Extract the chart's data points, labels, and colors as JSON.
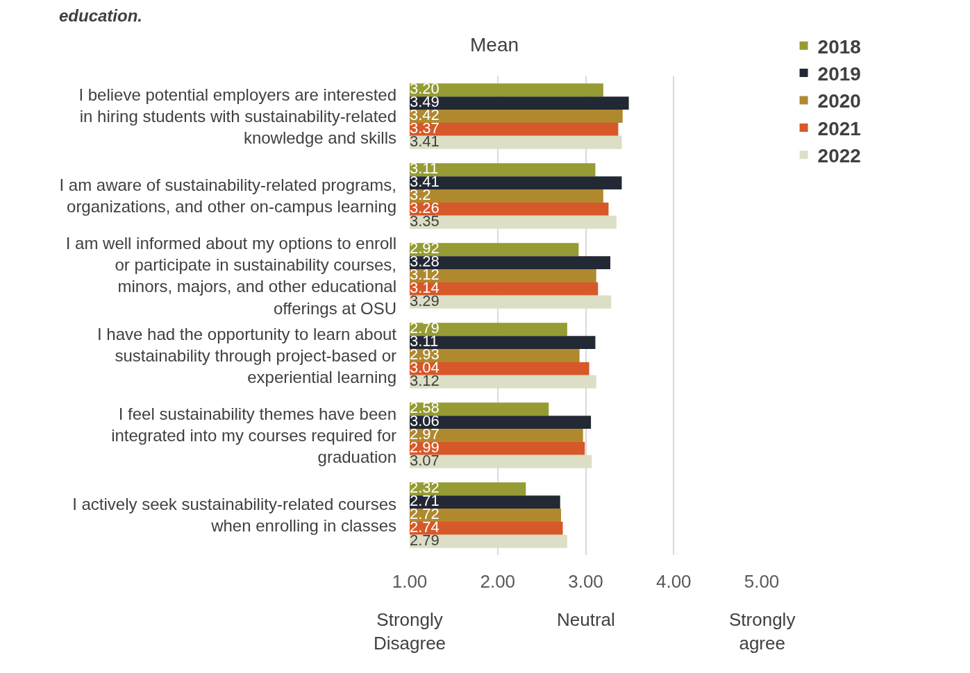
{
  "chart_data": {
    "type": "bar",
    "orientation": "horizontal",
    "title": "education.",
    "xlabel": "Mean",
    "categories": [
      "I believe potential employers are interested in hiring students with sustainability-related knowledge and skills",
      "I am aware of sustainability-related programs, organizations, and other on-campus learning",
      "I am well informed about my options to enroll or participate in sustainability courses, minors, majors, and other educational offerings at OSU",
      "I have had the opportunity to learn about sustainability through project-based or experiential learning",
      "I feel sustainability themes have been integrated into my courses required for graduation",
      "I actively seek sustainability-related courses when enrolling in classes"
    ],
    "series": [
      {
        "name": "2018",
        "color": "#969b33",
        "values": [
          3.2,
          3.11,
          2.92,
          2.79,
          2.58,
          2.32
        ],
        "value_labels": [
          "3.20",
          "3.11",
          "2.92",
          "2.79",
          "2.58",
          "2.32"
        ]
      },
      {
        "name": "2019",
        "color": "#222834",
        "values": [
          3.49,
          3.41,
          3.28,
          3.11,
          3.06,
          2.71
        ],
        "value_labels": [
          "3.49",
          "3.41",
          "3.28",
          "3.11",
          "3.06",
          "2.71"
        ]
      },
      {
        "name": "2020",
        "color": "#b0892f",
        "values": [
          3.42,
          3.2,
          3.12,
          2.93,
          2.97,
          2.72
        ],
        "value_labels": [
          "3.42",
          "3.2",
          "3.12",
          "2.93",
          "2.97",
          "2.72"
        ]
      },
      {
        "name": "2021",
        "color": "#d75828",
        "values": [
          3.37,
          3.26,
          3.14,
          3.04,
          2.99,
          2.74
        ],
        "value_labels": [
          "3.37",
          "3.26",
          "3.14",
          "3.04",
          "2.99",
          "2.74"
        ]
      },
      {
        "name": "2022",
        "color": "#dcdec6",
        "values": [
          3.41,
          3.35,
          3.29,
          3.12,
          3.07,
          2.79
        ],
        "value_labels": [
          "3.41",
          "3.35",
          "3.29",
          "3.12",
          "3.07",
          "2.79"
        ]
      }
    ],
    "xlim": [
      1,
      5
    ],
    "xticks": [
      {
        "value": 1,
        "label": "1.00"
      },
      {
        "value": 2,
        "label": "2.00"
      },
      {
        "value": 3,
        "label": "3.00"
      },
      {
        "value": 4,
        "label": "4.00"
      },
      {
        "value": 5,
        "label": "5.00"
      }
    ],
    "annotations": [
      "Strongly\nDisagree",
      "Neutral",
      "Strongly\nagree"
    ],
    "grid": "x",
    "legend": "top right"
  }
}
